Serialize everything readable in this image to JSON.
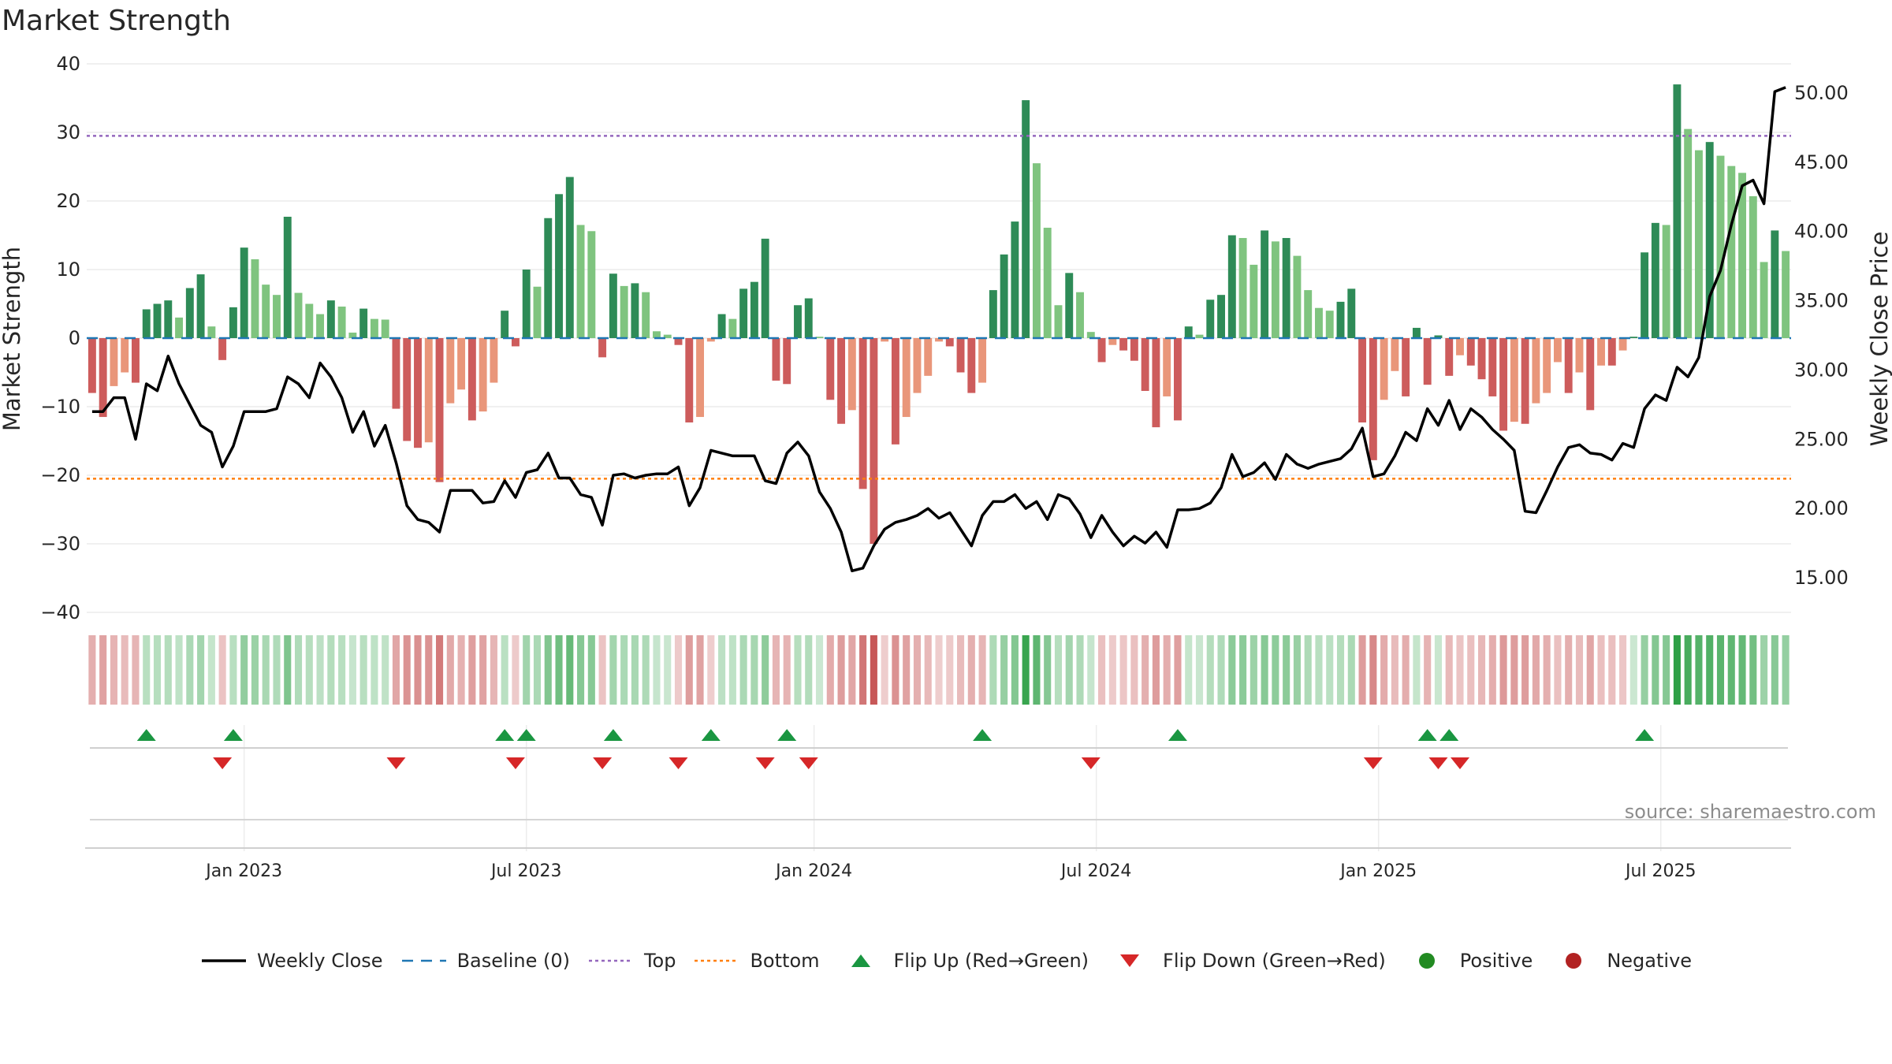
{
  "title": "Market Strength",
  "source": "source: sharemaestro.com",
  "colors": {
    "pos_dark": "#2e8b57",
    "pos_light": "#7fc47f",
    "neg_dark": "#cd5c5c",
    "neg_light": "#e9967a",
    "close": "#000000",
    "baseline": "#1f77b4",
    "top": "#9467bd",
    "bottom": "#ff7f0e",
    "flip_up": "#1a9641",
    "flip_down": "#d62728",
    "positive": "#228b22",
    "negative": "#b22222"
  },
  "chart_data": {
    "type": "bar",
    "title": "Market Strength",
    "ylabel": "Market Strength",
    "y2label": "Weekly Close Price",
    "ylim": [
      -40,
      40
    ],
    "y2lim": [
      12.5,
      52.1
    ],
    "yticks": [
      "40",
      "30",
      "20",
      "10",
      "0",
      "−10",
      "−20",
      "−30",
      "−40"
    ],
    "y2ticks": [
      "50.00",
      "45.00",
      "40.00",
      "35.00",
      "30.00",
      "25.00",
      "20.00",
      "15.00"
    ],
    "xticks": [
      "Jan 2023",
      "Jul 2023",
      "Jan 2024",
      "Jul 2024",
      "Jan 2025",
      "Jul 2025"
    ],
    "xtick_index": [
      14,
      40,
      66.5,
      92.5,
      118.5,
      144.5
    ],
    "n": 157,
    "top_line": 29.5,
    "bottom_line": -20.5,
    "strength": [
      -8,
      -11.5,
      -7,
      -5,
      -6.5,
      4.2,
      5,
      5.5,
      3,
      7.3,
      9.3,
      1.7,
      -3.2,
      4.5,
      13.2,
      11.5,
      7.8,
      6.3,
      17.7,
      6.6,
      5,
      3.5,
      5.5,
      4.6,
      0.8,
      4.3,
      2.8,
      2.7,
      -10.3,
      -15,
      -16,
      -15.2,
      -21,
      -9.5,
      -7.5,
      -12,
      -10.7,
      -6.5,
      4,
      -1.2,
      10,
      7.5,
      17.5,
      21,
      23.5,
      16.5,
      15.6,
      -2.8,
      9.4,
      7.6,
      8,
      6.7,
      1,
      0.5,
      -1,
      -12.3,
      -11.5,
      -0.5,
      3.5,
      2.8,
      7.2,
      8.2,
      14.5,
      -6.2,
      -6.7,
      4.8,
      5.8,
      0.2,
      -9,
      -12.5,
      -10.5,
      -22,
      -30,
      -0.5,
      -15.5,
      -11.5,
      -8,
      -5.5,
      -0.5,
      -1.2,
      -5,
      -8,
      -6.5,
      7,
      12.2,
      17,
      34.7,
      25.5,
      16.1,
      4.8,
      9.5,
      6.7,
      0.9,
      -3.5,
      -1,
      -1.8,
      -3.3,
      -7.7,
      -13,
      -8.5,
      -12,
      1.7,
      0.5,
      5.6,
      6.3,
      15,
      14.6,
      10.7,
      15.7,
      14.1,
      14.6,
      12,
      7,
      4.4,
      4,
      5.3,
      7.2,
      -12.3,
      -17.8,
      -9,
      -4.8,
      -8.5,
      1.5,
      -6.8,
      0.4,
      -5.5,
      -2.5,
      -4,
      -6,
      -8.5,
      -13.5,
      -12.2,
      -12.5,
      -9.5,
      -8,
      -3.5,
      -8,
      -5,
      -10.5,
      -4,
      -4,
      -1.8,
      0.2,
      12.5,
      16.8,
      16.5,
      37,
      30.5,
      27.4,
      28.6,
      26.6,
      25.1,
      24.1,
      20.7,
      11.1,
      15.7,
      12.7
    ],
    "close": [
      27,
      27,
      28,
      28,
      25,
      29,
      28.5,
      31,
      29,
      27.5,
      26,
      25.5,
      23,
      24.5,
      27,
      27,
      27,
      27.2,
      29.5,
      29,
      28,
      30.5,
      29.5,
      28,
      25.5,
      27,
      24.5,
      26,
      23.3,
      20.2,
      19.2,
      19,
      18.3,
      21.3,
      21.3,
      21.3,
      20.4,
      20.5,
      22,
      20.8,
      22.6,
      22.8,
      24,
      22.2,
      22.2,
      21,
      20.8,
      18.8,
      22.4,
      22.5,
      22.2,
      22.4,
      22.5,
      22.5,
      23,
      20.2,
      21.5,
      24.2,
      24,
      23.8,
      23.8,
      23.8,
      22,
      21.8,
      24,
      24.8,
      23.8,
      21.2,
      20,
      18.3,
      15.5,
      15.7,
      17.3,
      18.5,
      19,
      19.2,
      19.5,
      20,
      19.3,
      19.7,
      18.5,
      17.3,
      19.5,
      20.5,
      20.5,
      21,
      20,
      20.5,
      19.2,
      21,
      20.7,
      19.6,
      17.9,
      19.5,
      18.3,
      17.3,
      18,
      17.5,
      18.3,
      17.2,
      19.9,
      19.9,
      20,
      20.4,
      21.5,
      23.9,
      22.3,
      22.6,
      23.3,
      22.1,
      23.9,
      23.2,
      22.9,
      23.2,
      23.4,
      23.6,
      24.3,
      25.8,
      22.3,
      22.5,
      23.8,
      25.5,
      24.9,
      27.2,
      26,
      27.8,
      25.7,
      27.2,
      26.6,
      25.7,
      25,
      24.2,
      19.8,
      19.7,
      21.3,
      23,
      24.4,
      24.6,
      24,
      23.9,
      23.5,
      24.7,
      24.4,
      27.2,
      28.2,
      27.8,
      30.2,
      29.5,
      30.9,
      35.3,
      37.2,
      40.5,
      43.3,
      43.7,
      42,
      50.1,
      50.4
    ],
    "flip_up": [
      5,
      13,
      38,
      40,
      48,
      57,
      64,
      82,
      100,
      123,
      125,
      143
    ],
    "flip_down": [
      12,
      28,
      39,
      47,
      54,
      62,
      66,
      92,
      118,
      124,
      126
    ],
    "top_label": "Top",
    "bottom_label": "Bottom"
  },
  "legend": [
    {
      "label": "Weekly Close",
      "symbol": "solid-line-icon",
      "color": "#000000"
    },
    {
      "label": "Baseline (0)",
      "symbol": "dashed-line-icon",
      "color": "#1f77b4"
    },
    {
      "label": "Top",
      "symbol": "dotted-line-icon",
      "color": "#9467bd"
    },
    {
      "label": "Bottom",
      "symbol": "dotted-line-icon",
      "color": "#ff7f0e"
    },
    {
      "label": "Flip Up (Red→Green)",
      "symbol": "triangle-up-icon",
      "color": "#1a9641"
    },
    {
      "label": "Flip Down (Green→Red)",
      "symbol": "triangle-down-icon",
      "color": "#d62728"
    },
    {
      "label": "Positive",
      "symbol": "circle-icon",
      "color": "#228b22"
    },
    {
      "label": "Negative",
      "symbol": "circle-icon",
      "color": "#b22222"
    }
  ]
}
